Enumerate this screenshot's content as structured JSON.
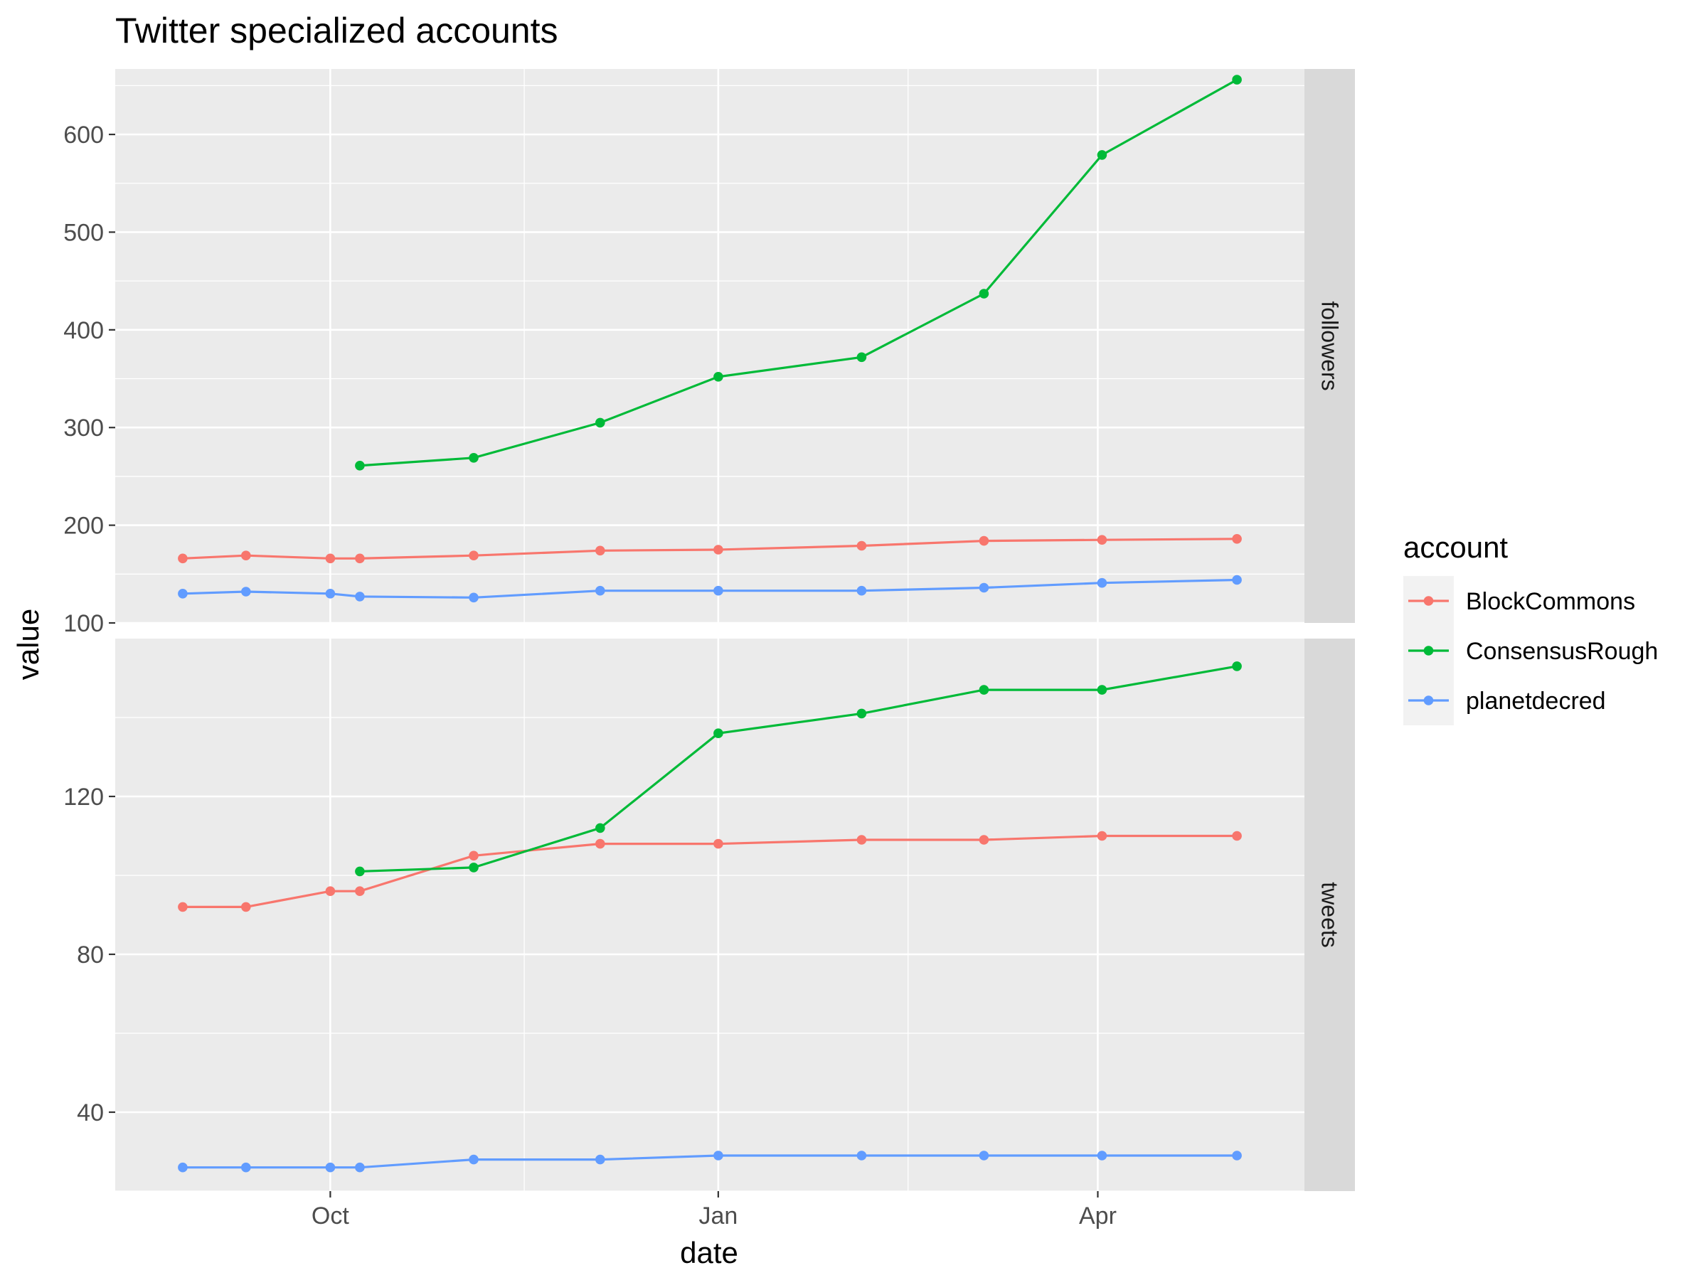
{
  "chart_data": {
    "type": "line",
    "title": "Twitter specialized accounts",
    "xlabel": "date",
    "ylabel": "value",
    "facet_strip_position": "right",
    "x_axis": {
      "type": "date",
      "range": [
        "2021-08-11",
        "2022-05-20"
      ],
      "major_ticks": [
        {
          "date": "2021-10-01",
          "label": "Oct"
        },
        {
          "date": "2022-01-01",
          "label": "Jan"
        },
        {
          "date": "2022-04-01",
          "label": "Apr"
        }
      ],
      "minor_ticks": [
        "2021-11-16",
        "2022-02-15"
      ]
    },
    "legend": {
      "title": "account",
      "position": "right",
      "entries": [
        "BlockCommons",
        "ConsensusRough",
        "planetdecred"
      ]
    },
    "colors": {
      "BlockCommons": "#F8766D",
      "ConsensusRough": "#00BA38",
      "planetdecred": "#619CFF"
    },
    "facets": [
      {
        "label": "followers",
        "ylim": [
          100,
          667
        ],
        "y_major_ticks": [
          100,
          200,
          300,
          400,
          500,
          600
        ],
        "y_minor_ticks": [
          150,
          250,
          350,
          450,
          550,
          650
        ],
        "series": [
          {
            "name": "BlockCommons",
            "points": [
              {
                "x": "2021-08-27",
                "y": 166
              },
              {
                "x": "2021-09-11",
                "y": 169
              },
              {
                "x": "2021-10-01",
                "y": 166
              },
              {
                "x": "2021-10-08",
                "y": 166
              },
              {
                "x": "2021-11-04",
                "y": 169
              },
              {
                "x": "2021-12-04",
                "y": 174
              },
              {
                "x": "2022-01-01",
                "y": 175
              },
              {
                "x": "2022-02-04",
                "y": 179
              },
              {
                "x": "2022-03-05",
                "y": 184
              },
              {
                "x": "2022-04-02",
                "y": 185
              },
              {
                "x": "2022-05-04",
                "y": 186
              }
            ]
          },
          {
            "name": "ConsensusRough",
            "points": [
              {
                "x": "2021-10-08",
                "y": 261
              },
              {
                "x": "2021-11-04",
                "y": 269
              },
              {
                "x": "2021-12-04",
                "y": 305
              },
              {
                "x": "2022-01-01",
                "y": 352
              },
              {
                "x": "2022-02-04",
                "y": 372
              },
              {
                "x": "2022-03-05",
                "y": 437
              },
              {
                "x": "2022-04-02",
                "y": 579
              },
              {
                "x": "2022-05-04",
                "y": 656
              }
            ]
          },
          {
            "name": "planetdecred",
            "points": [
              {
                "x": "2021-08-27",
                "y": 130
              },
              {
                "x": "2021-09-11",
                "y": 132
              },
              {
                "x": "2021-10-01",
                "y": 130
              },
              {
                "x": "2021-10-08",
                "y": 127
              },
              {
                "x": "2021-11-04",
                "y": 126
              },
              {
                "x": "2021-12-04",
                "y": 133
              },
              {
                "x": "2022-01-01",
                "y": 133
              },
              {
                "x": "2022-02-04",
                "y": 133
              },
              {
                "x": "2022-03-05",
                "y": 136
              },
              {
                "x": "2022-04-02",
                "y": 141
              },
              {
                "x": "2022-05-04",
                "y": 144
              }
            ]
          }
        ]
      },
      {
        "label": "tweets",
        "ylim": [
          20,
          160
        ],
        "y_major_ticks": [
          40,
          80,
          120
        ],
        "y_minor_ticks": [
          20,
          60,
          100,
          140
        ],
        "series": [
          {
            "name": "BlockCommons",
            "points": [
              {
                "x": "2021-08-27",
                "y": 92
              },
              {
                "x": "2021-09-11",
                "y": 92
              },
              {
                "x": "2021-10-01",
                "y": 96
              },
              {
                "x": "2021-10-08",
                "y": 96
              },
              {
                "x": "2021-11-04",
                "y": 105
              },
              {
                "x": "2021-12-04",
                "y": 108
              },
              {
                "x": "2022-01-01",
                "y": 108
              },
              {
                "x": "2022-02-04",
                "y": 109
              },
              {
                "x": "2022-03-05",
                "y": 109
              },
              {
                "x": "2022-04-02",
                "y": 110
              },
              {
                "x": "2022-05-04",
                "y": 110
              }
            ]
          },
          {
            "name": "ConsensusRough",
            "points": [
              {
                "x": "2021-10-08",
                "y": 101
              },
              {
                "x": "2021-11-04",
                "y": 102
              },
              {
                "x": "2021-12-04",
                "y": 112
              },
              {
                "x": "2022-01-01",
                "y": 136
              },
              {
                "x": "2022-02-04",
                "y": 141
              },
              {
                "x": "2022-03-05",
                "y": 147
              },
              {
                "x": "2022-04-02",
                "y": 147
              },
              {
                "x": "2022-05-04",
                "y": 153
              }
            ]
          },
          {
            "name": "planetdecred",
            "points": [
              {
                "x": "2021-08-27",
                "y": 26
              },
              {
                "x": "2021-09-11",
                "y": 26
              },
              {
                "x": "2021-10-01",
                "y": 26
              },
              {
                "x": "2021-10-08",
                "y": 26
              },
              {
                "x": "2021-11-04",
                "y": 28
              },
              {
                "x": "2021-12-04",
                "y": 28
              },
              {
                "x": "2022-01-01",
                "y": 29
              },
              {
                "x": "2022-02-04",
                "y": 29
              },
              {
                "x": "2022-03-05",
                "y": 29
              },
              {
                "x": "2022-04-02",
                "y": 29
              },
              {
                "x": "2022-05-04",
                "y": 29
              }
            ]
          }
        ]
      }
    ]
  }
}
